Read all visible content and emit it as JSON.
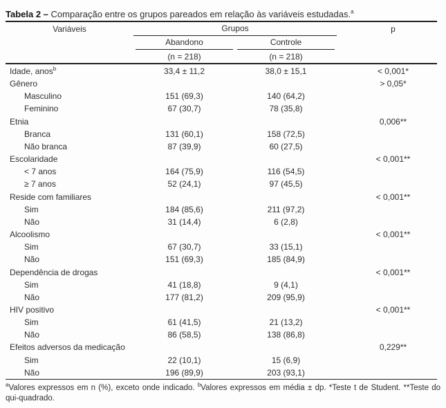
{
  "title": {
    "label": "Tabela 2 –",
    "text": " Comparação entre os grupos pareados em relação às variáveis estudadas.",
    "sup": "a"
  },
  "header": {
    "variables": "Variáveis",
    "groups": "Grupos",
    "group1": "Abandono",
    "group2": "Controle",
    "n1": "(n = 218)",
    "n2": "(n = 218)",
    "p": "p"
  },
  "rows": [
    {
      "label": "Idade, anos",
      "sup": "b",
      "indent": false,
      "abandono": "33,4 ± 11,2",
      "controle": "38,0 ± 15,1",
      "p": "< 0,001*"
    },
    {
      "label": "Gênero",
      "indent": false,
      "abandono": "",
      "controle": "",
      "p": "> 0,05*"
    },
    {
      "label": "Masculino",
      "indent": true,
      "abandono": "151 (69,3)",
      "controle": "140 (64,2)",
      "p": ""
    },
    {
      "label": "Feminino",
      "indent": true,
      "abandono": "67 (30,7)",
      "controle": "78 (35,8)",
      "p": ""
    },
    {
      "label": "Etnia",
      "indent": false,
      "abandono": "",
      "controle": "",
      "p": "0,006**"
    },
    {
      "label": "Branca",
      "indent": true,
      "abandono": "131 (60,1)",
      "controle": "158 (72,5)",
      "p": ""
    },
    {
      "label": "Não branca",
      "indent": true,
      "abandono": "87 (39,9)",
      "controle": "60 (27,5)",
      "p": ""
    },
    {
      "label": "Escolaridade",
      "indent": false,
      "abandono": "",
      "controle": "",
      "p": "< 0,001**"
    },
    {
      "label": "< 7 anos",
      "indent": true,
      "abandono": "164 (75,9)",
      "controle": "116 (54,5)",
      "p": ""
    },
    {
      "label": "≥ 7 anos",
      "indent": true,
      "abandono": "52 (24,1)",
      "controle": "97 (45,5)",
      "p": ""
    },
    {
      "label": "Reside com familiares",
      "indent": false,
      "abandono": "",
      "controle": "",
      "p": "< 0,001**"
    },
    {
      "label": "Sim",
      "indent": true,
      "abandono": "184 (85,6)",
      "controle": "211 (97,2)",
      "p": ""
    },
    {
      "label": "Não",
      "indent": true,
      "abandono": "31 (14,4)",
      "controle": "6 (2,8)",
      "p": ""
    },
    {
      "label": "Alcoolismo",
      "indent": false,
      "abandono": "",
      "controle": "",
      "p": "< 0,001**"
    },
    {
      "label": "Sim",
      "indent": true,
      "abandono": "67 (30,7)",
      "controle": "33 (15,1)",
      "p": ""
    },
    {
      "label": "Não",
      "indent": true,
      "abandono": "151 (69,3)",
      "controle": "185 (84,9)",
      "p": ""
    },
    {
      "label": "Dependência de drogas",
      "indent": false,
      "abandono": "",
      "controle": "",
      "p": "< 0,001**"
    },
    {
      "label": "Sim",
      "indent": true,
      "abandono": "41 (18,8)",
      "controle": "9 (4,1)",
      "p": ""
    },
    {
      "label": "Não",
      "indent": true,
      "abandono": "177 (81,2)",
      "controle": "209 (95,9)",
      "p": ""
    },
    {
      "label": "HIV positivo",
      "indent": false,
      "abandono": "",
      "controle": "",
      "p": "< 0,001**"
    },
    {
      "label": "Sim",
      "indent": true,
      "abandono": "61 (41,5)",
      "controle": "21 (13,2)",
      "p": ""
    },
    {
      "label": "Não",
      "indent": true,
      "abandono": "86 (58,5)",
      "controle": "138 (86,8)",
      "p": ""
    },
    {
      "label": "Efeitos adversos da medicação",
      "indent": false,
      "abandono": "",
      "controle": "",
      "p": "0,229**"
    },
    {
      "label": "Sim",
      "indent": true,
      "abandono": "22 (10,1)",
      "controle": "15 (6,9)",
      "p": ""
    },
    {
      "label": "Não",
      "indent": true,
      "abandono": "196 (89,9)",
      "controle": "203 (93,1)",
      "p": ""
    }
  ],
  "footnotes": [
    {
      "sup": "a",
      "text": "Valores expressos em n (%), exceto onde indicado. "
    },
    {
      "sup": "b",
      "text": "Valores expressos em média ± dp. "
    },
    {
      "sup": "",
      "text": "*Teste t de Student. **Teste do qui-quadrado."
    }
  ],
  "colors": {
    "text": "#2e2e2e",
    "rule": "#1f1f1f",
    "background": "#fdfdfd"
  }
}
